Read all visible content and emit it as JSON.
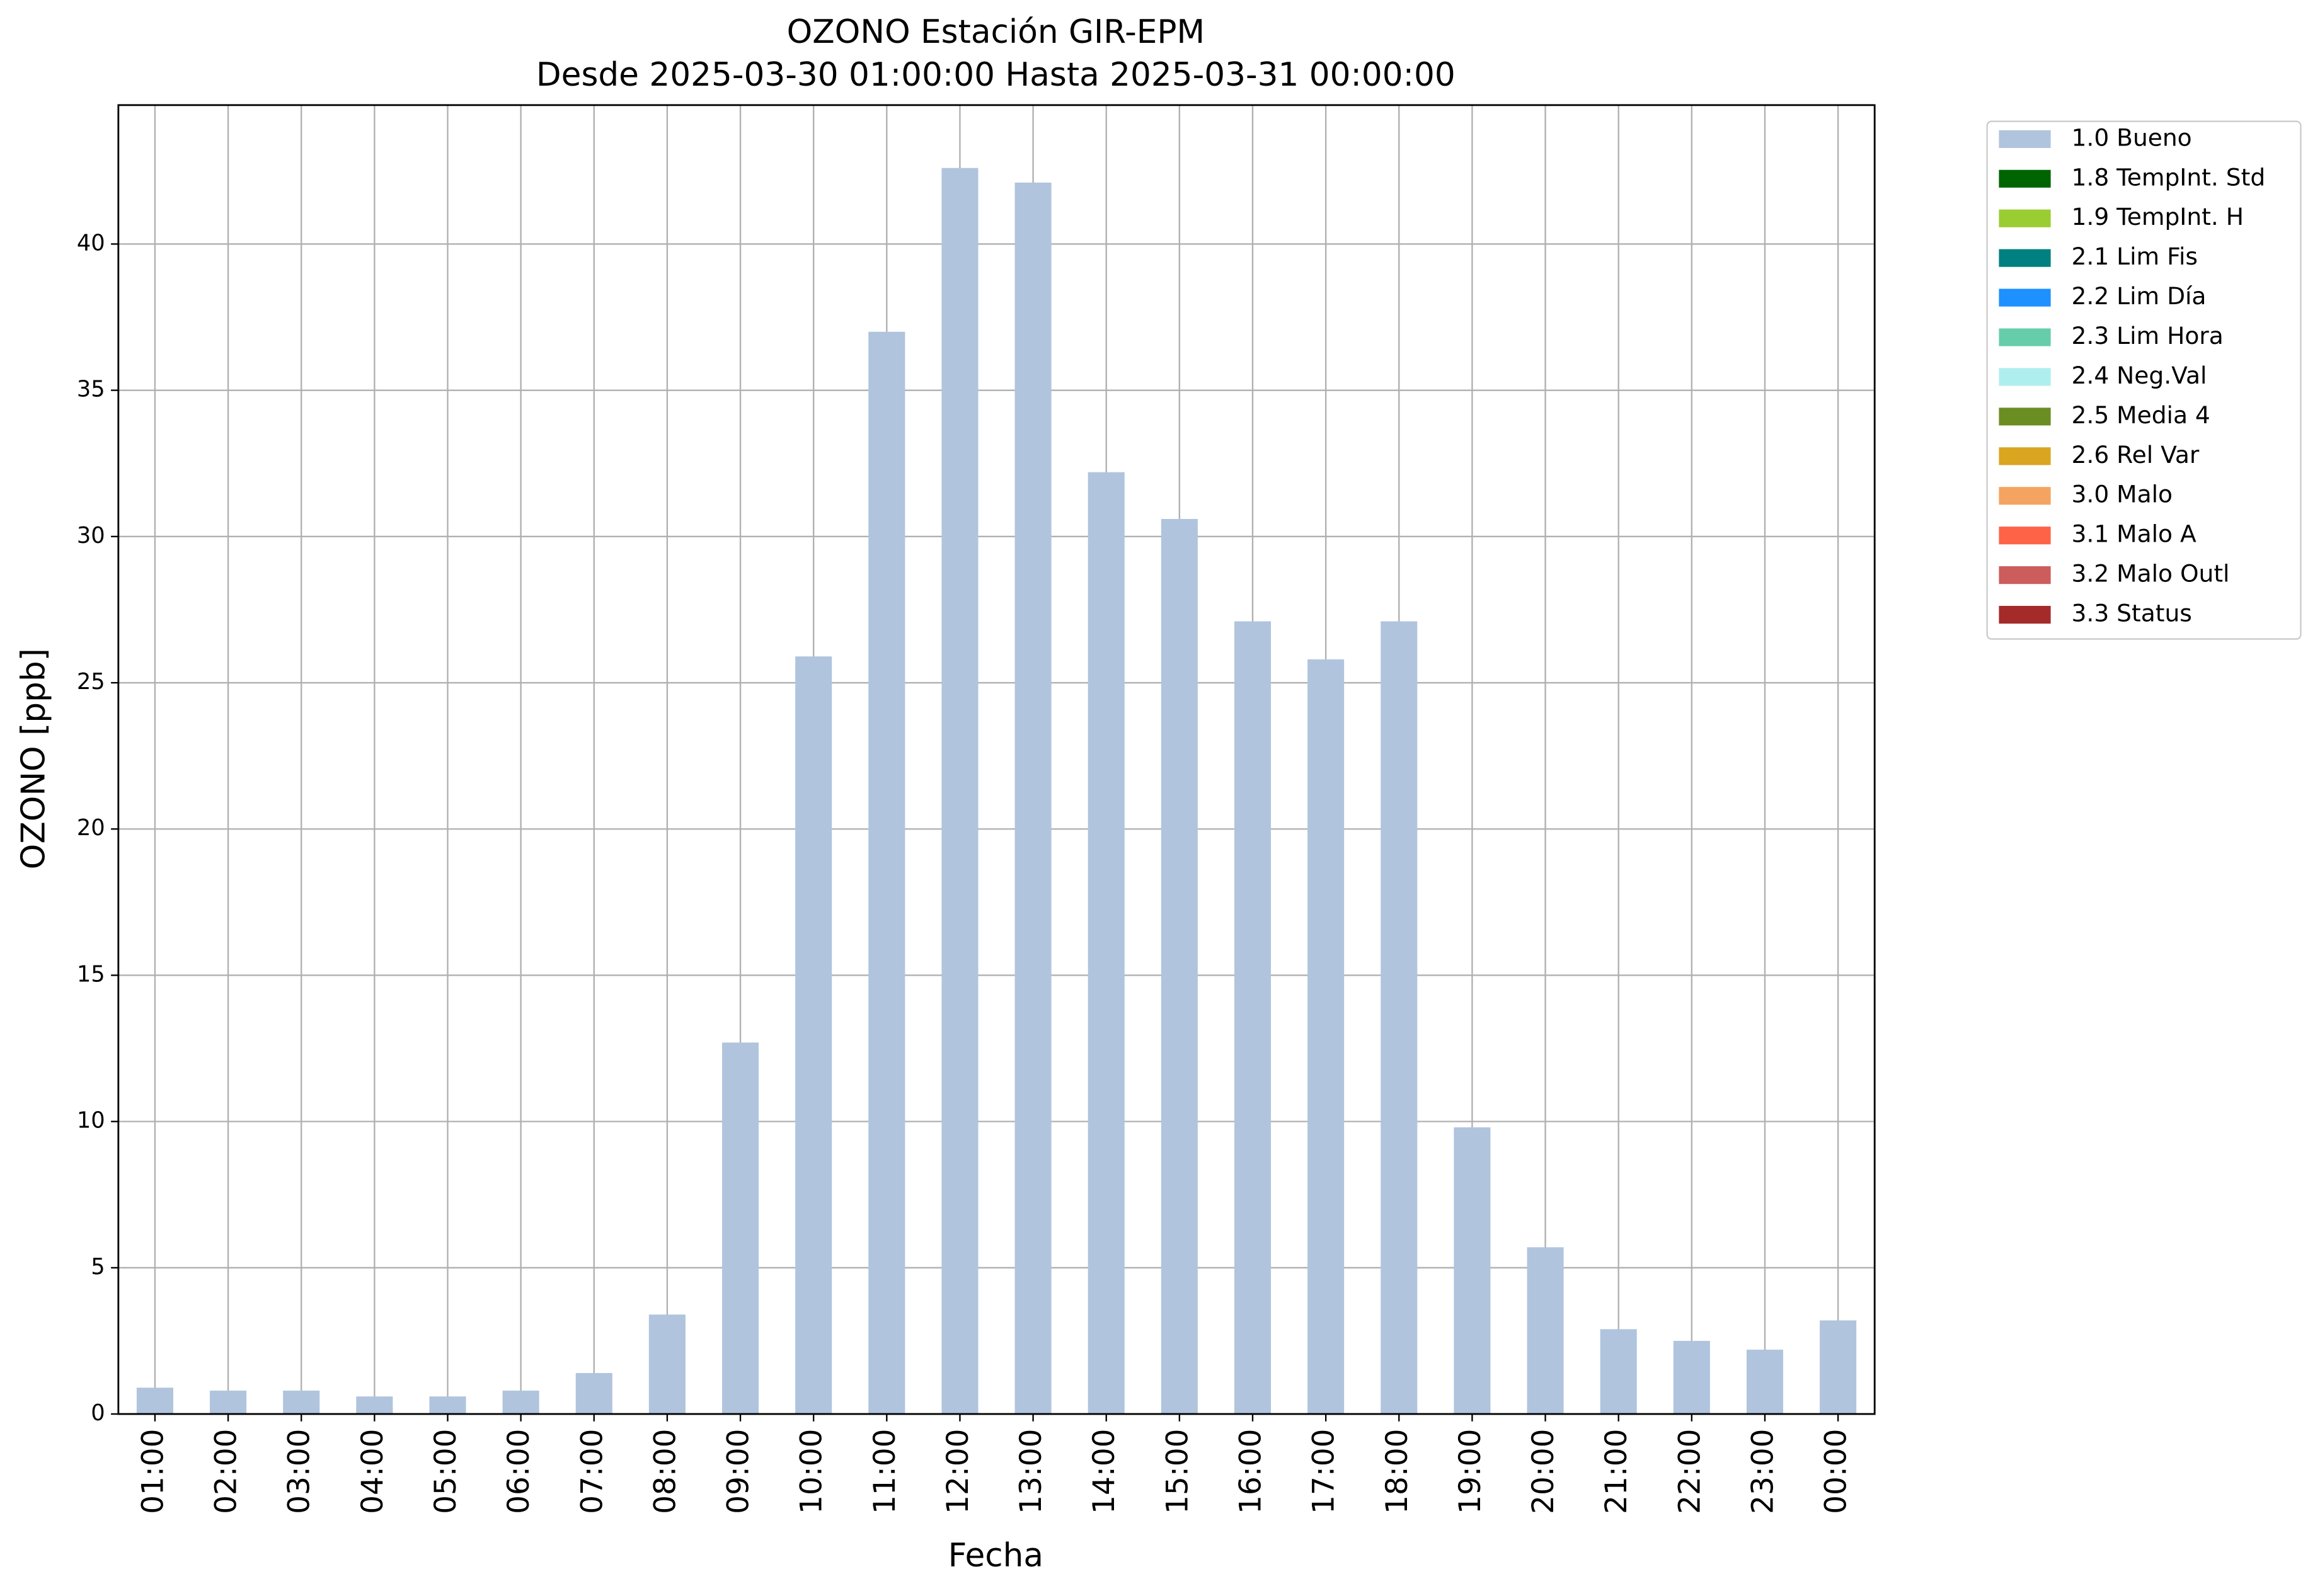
{
  "chart_data": {
    "type": "bar",
    "stacked": true,
    "title": "OZONO Estación GIR-EPM",
    "subtitle": "Desde 2025-03-30 01:00:00 Hasta 2025-03-31 00:00:00",
    "x_label": "Fecha",
    "y_label": "OZONO [ppb]",
    "categories": [
      "01:00",
      "02:00",
      "03:00",
      "04:00",
      "05:00",
      "06:00",
      "07:00",
      "08:00",
      "09:00",
      "10:00",
      "11:00",
      "12:00",
      "13:00",
      "14:00",
      "15:00",
      "16:00",
      "17:00",
      "18:00",
      "19:00",
      "20:00",
      "21:00",
      "22:00",
      "23:00",
      "00:00"
    ],
    "series": [
      {
        "name": "1.0 Bueno",
        "color": "#b0c4de",
        "values": [
          0.9,
          0.8,
          0.8,
          0.6,
          0.6,
          0.8,
          1.4,
          3.4,
          12.7,
          25.9,
          37,
          42.6,
          42.1,
          32.2,
          30.6,
          27.1,
          25.8,
          27.1,
          9.8,
          5.7,
          2.9,
          2.5,
          2.2,
          3.2
        ]
      },
      {
        "name": "1.8 TempInt. Std",
        "color": "#006400"
      },
      {
        "name": "1.9 TempInt. H",
        "color": "#9acd32"
      },
      {
        "name": "2.1 Lim Fis",
        "color": "#008080"
      },
      {
        "name": "2.2 Lim Día",
        "color": "#1e90ff"
      },
      {
        "name": "2.3 Lim Hora",
        "color": "#66cdaa"
      },
      {
        "name": "2.4 Neg.Val",
        "color": "#afeeee"
      },
      {
        "name": "2.5 Media 4",
        "color": "#6b8e23"
      },
      {
        "name": "2.6 Rel Var",
        "color": "#daa520"
      },
      {
        "name": "3.0 Malo",
        "color": "#f4a460"
      },
      {
        "name": "3.1 Malo A",
        "color": "#ff6347"
      },
      {
        "name": "3.2 Malo Outl",
        "color": "#cd5c5c"
      },
      {
        "name": "3.3 Status",
        "color": "#a52a2a"
      }
    ],
    "ylim": [
      0,
      44.75
    ],
    "yticks": [
      0,
      5,
      10,
      15,
      20,
      25,
      30,
      35,
      40
    ],
    "grid": true,
    "legend": "outside-upper-right"
  }
}
